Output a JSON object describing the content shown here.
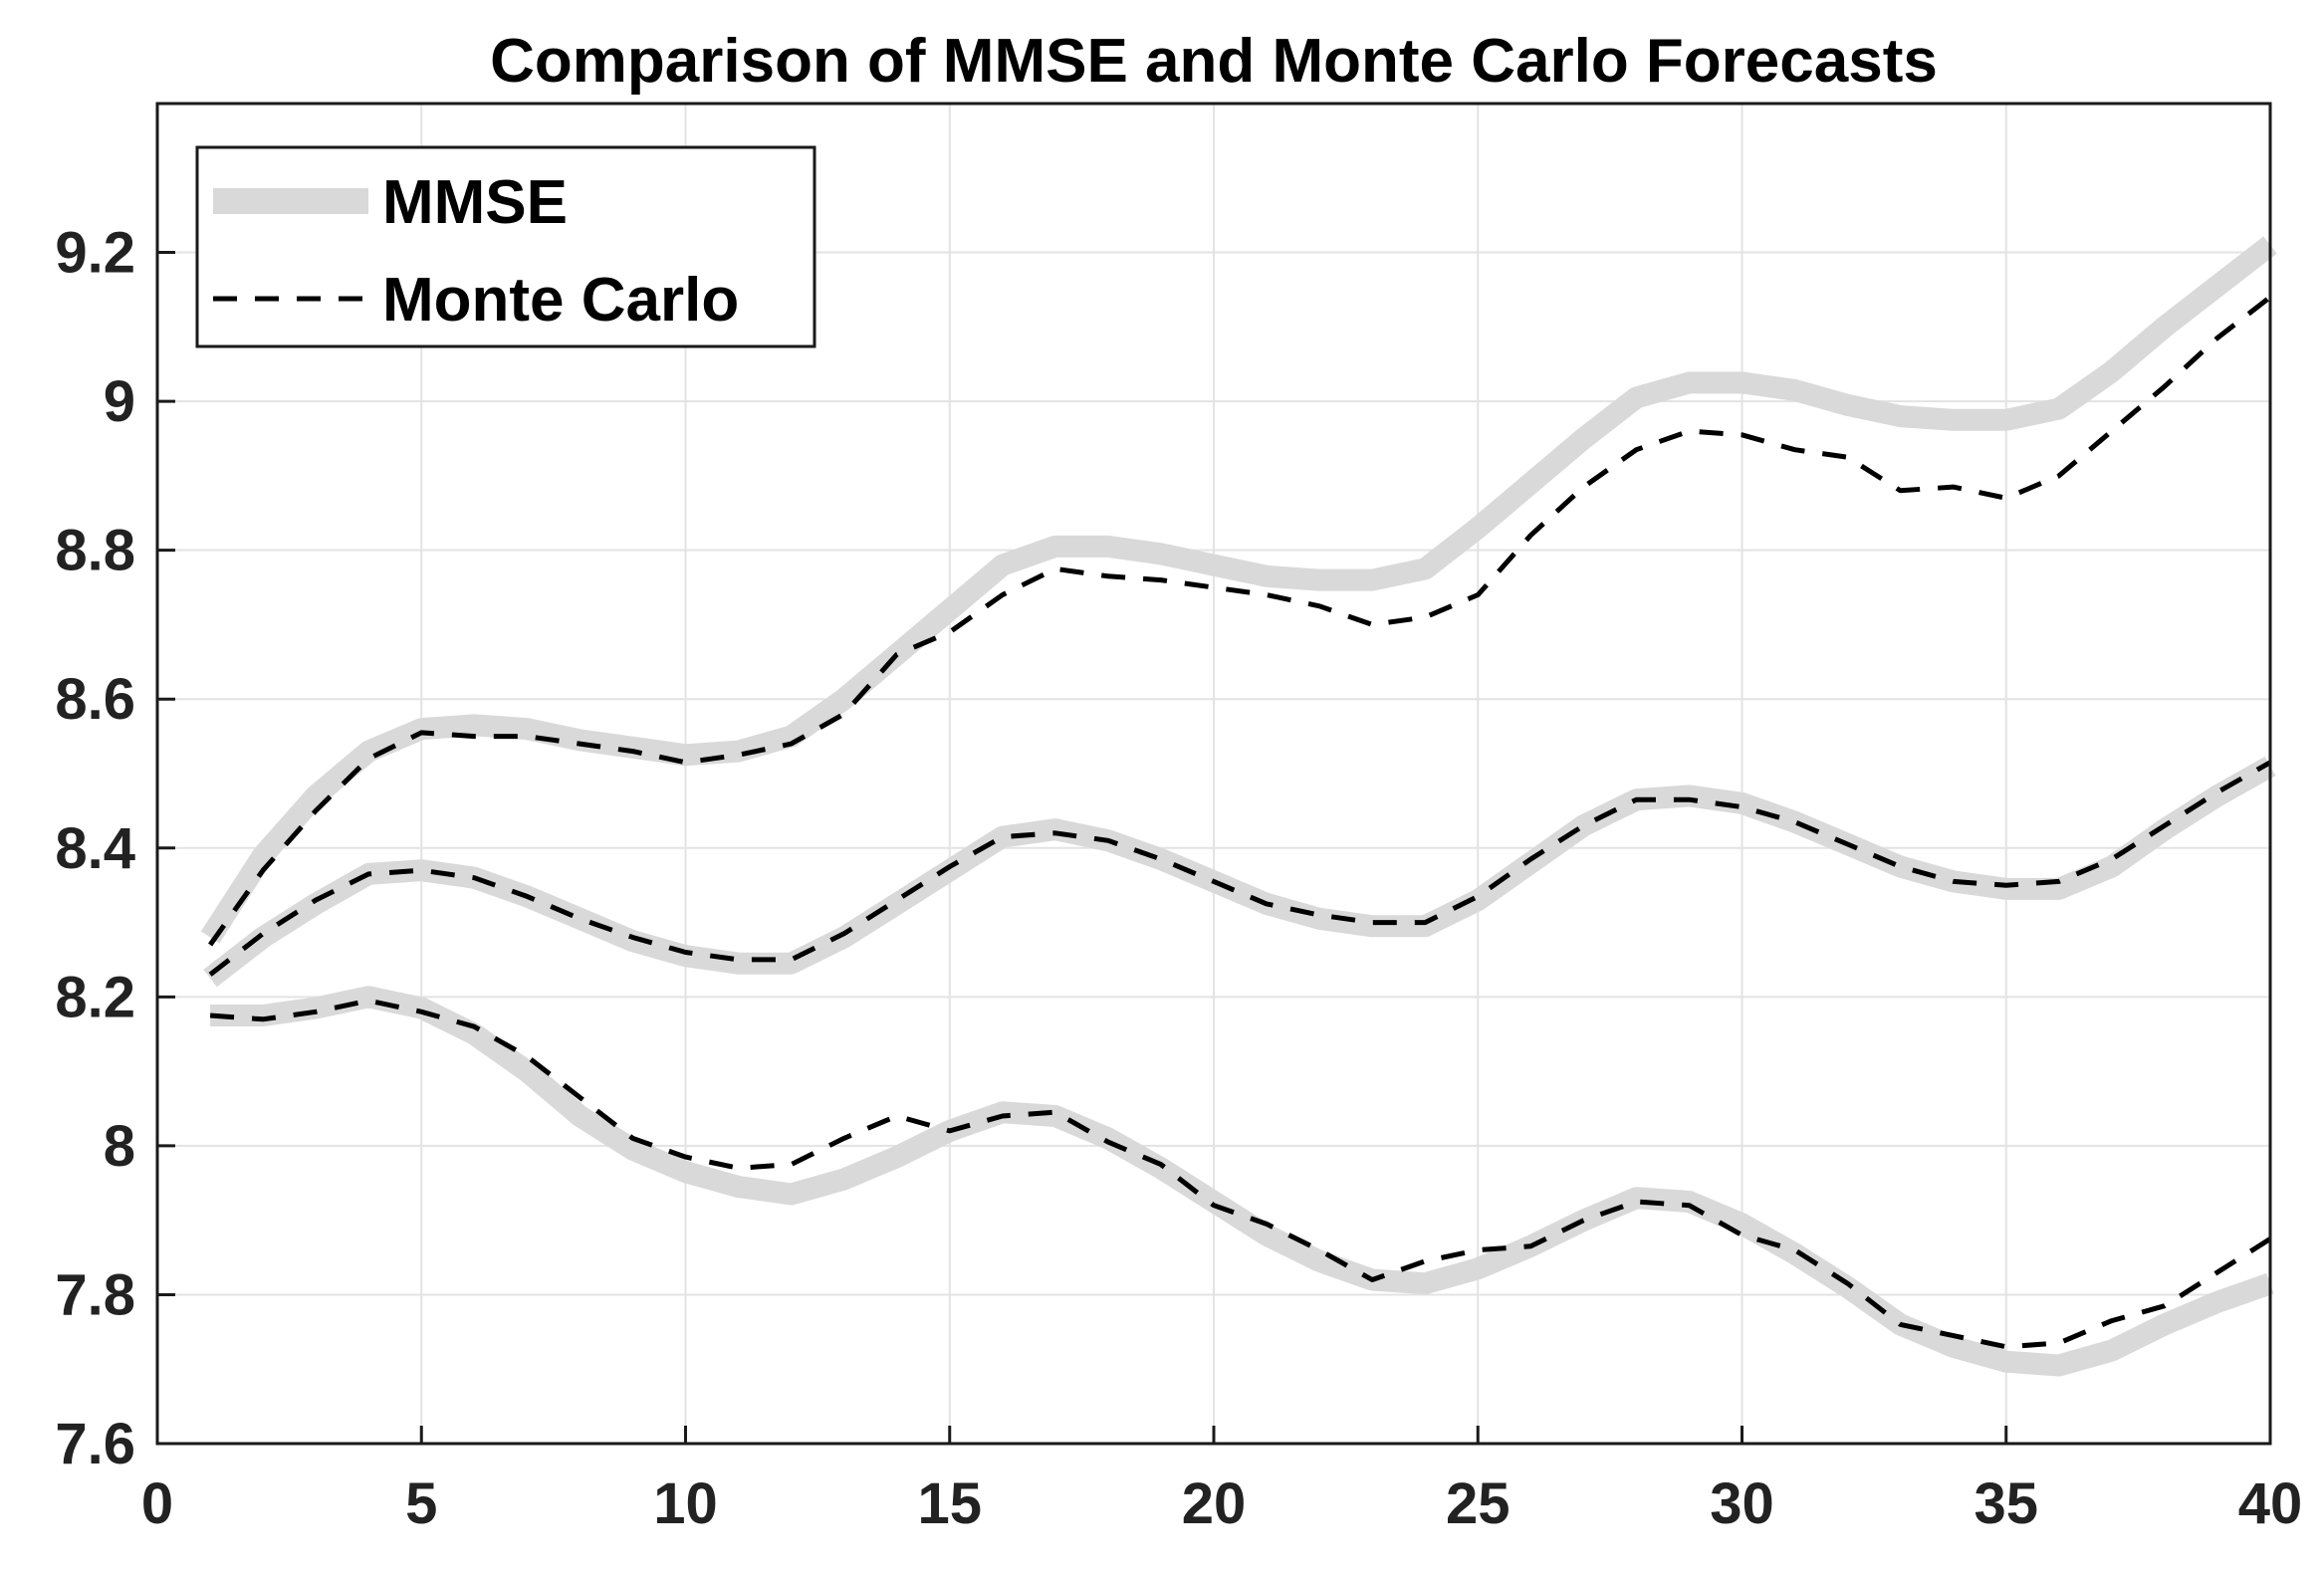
{
  "chart_data": {
    "type": "line",
    "title": "Comparison of MMSE and Monte Carlo Forecasts",
    "xlabel": "",
    "ylabel": "",
    "xlim": [
      0,
      40
    ],
    "ylim": [
      7.6,
      9.4
    ],
    "xticks": [
      0,
      5,
      10,
      15,
      20,
      25,
      30,
      35,
      40
    ],
    "yticks": [
      7.6,
      7.8,
      8.0,
      8.2,
      8.4,
      8.6,
      8.8,
      9.0,
      9.2
    ],
    "xtick_labels": [
      "0",
      "5",
      "10",
      "15",
      "20",
      "25",
      "30",
      "35",
      "40"
    ],
    "ytick_labels": [
      "7.6",
      "7.8",
      "8",
      "8.2",
      "8.4",
      "8.6",
      "8.8",
      "9",
      "9.2"
    ],
    "grid": true,
    "legend_position": "top-left",
    "legend": [
      {
        "label": "MMSE",
        "style": "thick-solid",
        "color": "#d9d9d9"
      },
      {
        "label": "Monte Carlo",
        "style": "dashed",
        "color": "#000000"
      }
    ],
    "x": [
      1,
      2,
      3,
      4,
      5,
      6,
      7,
      8,
      9,
      10,
      11,
      12,
      13,
      14,
      15,
      16,
      17,
      18,
      19,
      20,
      21,
      22,
      23,
      24,
      25,
      26,
      27,
      28,
      29,
      30,
      31,
      32,
      33,
      34,
      35,
      36,
      37,
      38,
      39,
      40
    ],
    "series": [
      {
        "group": "MMSE",
        "role": "upper",
        "color": "#d9d9d9",
        "values": [
          8.28,
          8.39,
          8.47,
          8.53,
          8.56,
          8.565,
          8.56,
          8.545,
          8.535,
          8.525,
          8.53,
          8.55,
          8.6,
          8.66,
          8.72,
          8.78,
          8.805,
          8.805,
          8.795,
          8.78,
          8.765,
          8.76,
          8.76,
          8.775,
          8.83,
          8.89,
          8.95,
          9.005,
          9.025,
          9.025,
          9.015,
          8.995,
          8.98,
          8.975,
          8.975,
          8.99,
          9.04,
          9.1,
          9.155,
          9.21
        ]
      },
      {
        "group": "Monte Carlo",
        "role": "upper",
        "color": "#000000",
        "values": [
          8.27,
          8.37,
          8.45,
          8.52,
          8.555,
          8.55,
          8.55,
          8.54,
          8.53,
          8.515,
          8.525,
          8.54,
          8.58,
          8.66,
          8.69,
          8.74,
          8.775,
          8.765,
          8.76,
          8.75,
          8.74,
          8.725,
          8.7,
          8.71,
          8.74,
          8.82,
          8.885,
          8.935,
          8.96,
          8.955,
          8.935,
          8.925,
          8.88,
          8.885,
          8.87,
          8.9,
          8.96,
          9.02,
          9.085,
          9.14
        ]
      },
      {
        "group": "MMSE",
        "role": "center",
        "color": "#d9d9d9",
        "values": [
          8.225,
          8.28,
          8.325,
          8.365,
          8.37,
          8.36,
          8.335,
          8.305,
          8.275,
          8.255,
          8.245,
          8.245,
          8.28,
          8.325,
          8.37,
          8.415,
          8.425,
          8.41,
          8.385,
          8.355,
          8.325,
          8.305,
          8.295,
          8.295,
          8.33,
          8.38,
          8.43,
          8.465,
          8.47,
          8.46,
          8.435,
          8.405,
          8.375,
          8.355,
          8.345,
          8.345,
          8.375,
          8.425,
          8.47,
          8.51
        ]
      },
      {
        "group": "Monte Carlo",
        "role": "center",
        "color": "#000000",
        "values": [
          8.23,
          8.285,
          8.33,
          8.365,
          8.37,
          8.36,
          8.335,
          8.305,
          8.28,
          8.26,
          8.25,
          8.25,
          8.285,
          8.33,
          8.375,
          8.415,
          8.42,
          8.41,
          8.385,
          8.355,
          8.325,
          8.31,
          8.3,
          8.3,
          8.335,
          8.385,
          8.43,
          8.465,
          8.465,
          8.455,
          8.435,
          8.405,
          8.375,
          8.355,
          8.35,
          8.355,
          8.385,
          8.43,
          8.475,
          8.515
        ]
      },
      {
        "group": "MMSE",
        "role": "lower",
        "color": "#d9d9d9",
        "values": [
          8.175,
          8.175,
          8.185,
          8.2,
          8.185,
          8.15,
          8.1,
          8.04,
          7.995,
          7.965,
          7.945,
          7.935,
          7.955,
          7.985,
          8.02,
          8.045,
          8.04,
          8.01,
          7.97,
          7.925,
          7.88,
          7.845,
          7.82,
          7.815,
          7.835,
          7.865,
          7.9,
          7.93,
          7.925,
          7.895,
          7.855,
          7.81,
          7.76,
          7.73,
          7.71,
          7.705,
          7.725,
          7.76,
          7.79,
          7.815
        ]
      },
      {
        "group": "Monte Carlo",
        "role": "lower",
        "color": "#000000",
        "values": [
          8.175,
          8.17,
          8.18,
          8.195,
          8.18,
          8.16,
          8.12,
          8.065,
          8.01,
          7.985,
          7.97,
          7.975,
          8.01,
          8.04,
          8.02,
          8.04,
          8.045,
          8.005,
          7.975,
          7.92,
          7.895,
          7.86,
          7.82,
          7.845,
          7.86,
          7.865,
          7.9,
          7.925,
          7.92,
          7.88,
          7.86,
          7.815,
          7.76,
          7.745,
          7.73,
          7.735,
          7.765,
          7.785,
          7.83,
          7.875
        ]
      }
    ]
  }
}
